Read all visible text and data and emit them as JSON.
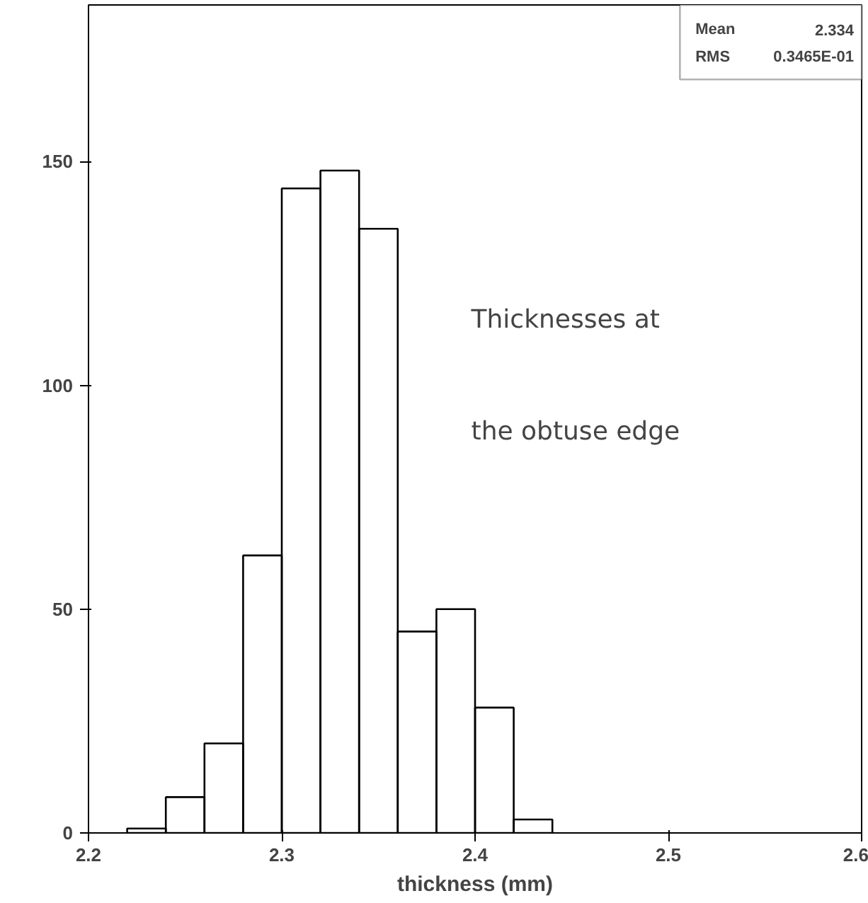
{
  "chart_data": {
    "type": "histogram",
    "xlabel": "thickness (mm)",
    "bins": [
      2.22,
      2.24,
      2.26,
      2.28,
      2.3,
      2.32,
      2.34,
      2.36,
      2.38,
      2.4,
      2.42,
      2.44
    ],
    "values": [
      1,
      8,
      20,
      62,
      144,
      148,
      135,
      45,
      50,
      28,
      3
    ],
    "color": "#000000",
    "xlim": [
      2.2,
      2.6
    ],
    "xticks": [
      2.2,
      2.3,
      2.4,
      2.5,
      2.6
    ],
    "ylim": [
      0,
      185
    ],
    "yticks": [
      0,
      50,
      100,
      150
    ],
    "grid": false,
    "annotations": [
      "Mean",
      "2.334",
      "RMS",
      "0.3465E-01",
      "Thicknesses at",
      "the obtuse edge"
    ]
  }
}
